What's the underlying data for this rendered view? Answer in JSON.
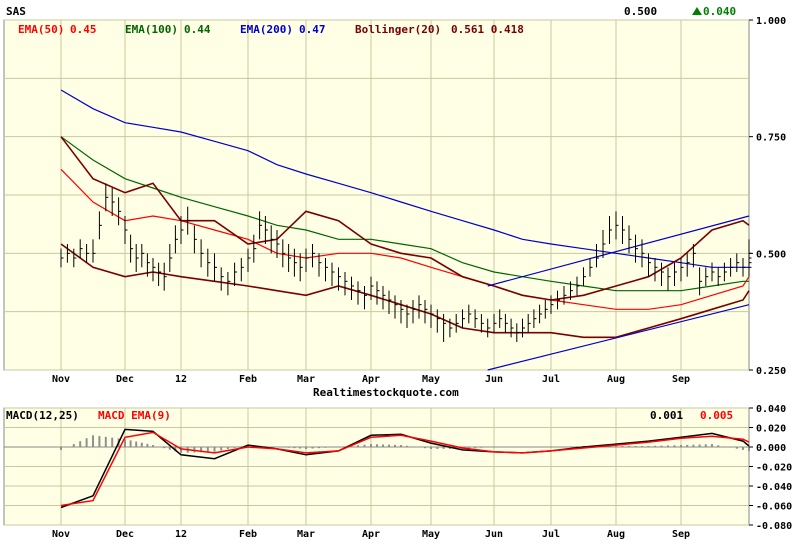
{
  "header": {
    "symbol": "SAS",
    "last_price": "0.500",
    "change": "0.040",
    "change_arrow": "up-arrow-icon",
    "change_color": "#008000"
  },
  "watermark": "Realtimestockquote.com",
  "legend": [
    {
      "label": "EMA(50)",
      "value": "0.45",
      "color": "#ff0000"
    },
    {
      "label": "EMA(100)",
      "value": "0.44",
      "color": "#006600"
    },
    {
      "label": "EMA(200)",
      "value": "0.47",
      "color": "#0000cc"
    },
    {
      "label": "Bollinger(20)",
      "value": "0.561 0.418",
      "color": "#7a0000"
    }
  ],
  "macd_legend": [
    {
      "label": "MACD(12,25)",
      "color": "#000000"
    },
    {
      "label": "MACD EMA(9)",
      "color": "#ff0000"
    }
  ],
  "macd_values": {
    "macd": "0.001",
    "signal": "0.005"
  },
  "colors": {
    "background": "#ffffe6",
    "grid": "#c8c8a0",
    "price_bar": "#000000",
    "histogram": "#909090"
  },
  "chart_data": [
    {
      "type": "line",
      "title": "SAS",
      "x_labels": [
        "Nov",
        "Dec",
        "12",
        "Feb",
        "Mar",
        "Apr",
        "May",
        "Jun",
        "Jul",
        "Aug",
        "Sep"
      ],
      "y_ticks": [
        "1.000",
        "0.750",
        "0.500",
        "0.250"
      ],
      "ylim": [
        0.25,
        1.0
      ],
      "grid": true,
      "price_bars": {
        "month_index": [
          0.0,
          0.1,
          0.2,
          0.3,
          0.4,
          0.5,
          0.6,
          0.7,
          0.8,
          0.9,
          1.0,
          1.1,
          1.2,
          1.3,
          1.4,
          1.5,
          1.6,
          1.7,
          1.8,
          1.9,
          2.0,
          2.1,
          2.2,
          2.3,
          2.4,
          2.5,
          2.6,
          2.7,
          2.8,
          2.9,
          3.0,
          3.1,
          3.2,
          3.3,
          3.4,
          3.5,
          3.6,
          3.7,
          3.8,
          3.9,
          4.0,
          4.1,
          4.2,
          4.3,
          4.4,
          4.5,
          4.6,
          4.7,
          4.8,
          4.9,
          5.0,
          5.1,
          5.2,
          5.3,
          5.4,
          5.5,
          5.6,
          5.7,
          5.8,
          5.9,
          6.0,
          6.1,
          6.2,
          6.3,
          6.4,
          6.5,
          6.6,
          6.7,
          6.8,
          6.9,
          7.0,
          7.1,
          7.2,
          7.3,
          7.4,
          7.5,
          7.6,
          7.7,
          7.8,
          7.9,
          8.0,
          8.1,
          8.2,
          8.3,
          8.4,
          8.5,
          8.6,
          8.7,
          8.8,
          8.9,
          9.0,
          9.1,
          9.2,
          9.3,
          9.4,
          9.5,
          9.6,
          9.7,
          9.8,
          9.9,
          10.0,
          10.1,
          10.2,
          10.3,
          10.4,
          10.5,
          10.6,
          10.7,
          10.8,
          10.9,
          11.0,
          11.1,
          11.2,
          11.3,
          11.4,
          11.5
        ],
        "close": [
          0.49,
          0.5,
          0.49,
          0.51,
          0.5,
          0.5,
          0.56,
          0.62,
          0.61,
          0.59,
          0.55,
          0.51,
          0.49,
          0.5,
          0.48,
          0.47,
          0.46,
          0.45,
          0.49,
          0.53,
          0.55,
          0.57,
          0.53,
          0.5,
          0.48,
          0.47,
          0.45,
          0.44,
          0.46,
          0.47,
          0.49,
          0.51,
          0.56,
          0.55,
          0.53,
          0.52,
          0.5,
          0.49,
          0.48,
          0.47,
          0.49,
          0.5,
          0.48,
          0.47,
          0.46,
          0.45,
          0.44,
          0.43,
          0.42,
          0.41,
          0.43,
          0.42,
          0.41,
          0.4,
          0.39,
          0.38,
          0.37,
          0.38,
          0.39,
          0.38,
          0.37,
          0.36,
          0.35,
          0.34,
          0.35,
          0.36,
          0.37,
          0.36,
          0.35,
          0.34,
          0.35,
          0.36,
          0.35,
          0.34,
          0.33,
          0.34,
          0.35,
          0.36,
          0.37,
          0.38,
          0.39,
          0.4,
          0.41,
          0.42,
          0.43,
          0.45,
          0.47,
          0.49,
          0.52,
          0.55,
          0.56,
          0.55,
          0.53,
          0.51,
          0.5,
          0.48,
          0.47,
          0.46,
          0.45,
          0.46,
          0.47,
          0.48,
          0.5,
          0.44,
          0.45,
          0.46,
          0.45,
          0.46,
          0.47,
          0.48,
          0.47,
          0.47,
          0.48,
          0.49,
          0.49,
          0.5
        ],
        "high": [
          0.51,
          0.52,
          0.51,
          0.53,
          0.52,
          0.53,
          0.59,
          0.65,
          0.64,
          0.62,
          0.58,
          0.54,
          0.52,
          0.52,
          0.5,
          0.49,
          0.48,
          0.48,
          0.52,
          0.56,
          0.58,
          0.6,
          0.56,
          0.53,
          0.51,
          0.5,
          0.47,
          0.46,
          0.48,
          0.49,
          0.51,
          0.54,
          0.59,
          0.58,
          0.56,
          0.55,
          0.53,
          0.52,
          0.51,
          0.5,
          0.51,
          0.52,
          0.5,
          0.49,
          0.48,
          0.47,
          0.46,
          0.45,
          0.44,
          0.43,
          0.45,
          0.44,
          0.43,
          0.42,
          0.41,
          0.4,
          0.39,
          0.4,
          0.41,
          0.4,
          0.39,
          0.38,
          0.37,
          0.36,
          0.37,
          0.38,
          0.39,
          0.38,
          0.37,
          0.36,
          0.37,
          0.38,
          0.37,
          0.36,
          0.35,
          0.36,
          0.37,
          0.38,
          0.39,
          0.4,
          0.41,
          0.42,
          0.43,
          0.44,
          0.45,
          0.47,
          0.49,
          0.52,
          0.55,
          0.58,
          0.59,
          0.58,
          0.56,
          0.54,
          0.53,
          0.5,
          0.49,
          0.48,
          0.47,
          0.48,
          0.49,
          0.5,
          0.52,
          0.47,
          0.47,
          0.48,
          0.47,
          0.48,
          0.49,
          0.5,
          0.49,
          0.49,
          0.5,
          0.51,
          0.51,
          0.53
        ],
        "low": [
          0.47,
          0.48,
          0.47,
          0.49,
          0.48,
          0.48,
          0.53,
          0.59,
          0.58,
          0.56,
          0.52,
          0.48,
          0.46,
          0.47,
          0.45,
          0.44,
          0.43,
          0.42,
          0.46,
          0.5,
          0.52,
          0.54,
          0.5,
          0.47,
          0.45,
          0.44,
          0.42,
          0.41,
          0.43,
          0.44,
          0.46,
          0.48,
          0.53,
          0.52,
          0.5,
          0.49,
          0.47,
          0.46,
          0.45,
          0.44,
          0.46,
          0.47,
          0.45,
          0.44,
          0.43,
          0.42,
          0.41,
          0.4,
          0.39,
          0.38,
          0.4,
          0.39,
          0.38,
          0.37,
          0.36,
          0.35,
          0.34,
          0.35,
          0.36,
          0.35,
          0.34,
          0.33,
          0.31,
          0.32,
          0.33,
          0.34,
          0.35,
          0.34,
          0.33,
          0.32,
          0.33,
          0.34,
          0.33,
          0.32,
          0.31,
          0.32,
          0.33,
          0.34,
          0.35,
          0.36,
          0.37,
          0.38,
          0.39,
          0.4,
          0.41,
          0.43,
          0.45,
          0.47,
          0.49,
          0.52,
          0.53,
          0.52,
          0.5,
          0.48,
          0.47,
          0.45,
          0.44,
          0.43,
          0.42,
          0.43,
          0.44,
          0.45,
          0.47,
          0.41,
          0.43,
          0.44,
          0.43,
          0.44,
          0.45,
          0.46,
          0.45,
          0.45,
          0.46,
          0.47,
          0.47,
          0.47
        ]
      },
      "series": [
        {
          "name": "EMA(50)",
          "color": "#ff0000",
          "x": [
            0,
            0.5,
            1,
            1.5,
            2,
            2.5,
            3,
            3.5,
            4,
            4.5,
            5,
            5.5,
            6,
            6.5,
            7,
            7.5,
            8,
            8.5,
            9,
            9.5,
            10,
            10.5,
            11,
            11.5
          ],
          "values": [
            0.68,
            0.61,
            0.57,
            0.58,
            0.57,
            0.55,
            0.53,
            0.5,
            0.49,
            0.5,
            0.5,
            0.49,
            0.47,
            0.45,
            0.43,
            0.41,
            0.4,
            0.39,
            0.38,
            0.38,
            0.39,
            0.41,
            0.43,
            0.45
          ]
        },
        {
          "name": "EMA(100)",
          "color": "#006600",
          "x": [
            0,
            0.5,
            1,
            1.5,
            2,
            2.5,
            3,
            3.5,
            4,
            4.5,
            5,
            5.5,
            6,
            6.5,
            7,
            7.5,
            8,
            8.5,
            9,
            9.5,
            10,
            10.5,
            11,
            11.5
          ],
          "values": [
            0.75,
            0.7,
            0.66,
            0.64,
            0.62,
            0.6,
            0.58,
            0.56,
            0.55,
            0.53,
            0.53,
            0.52,
            0.51,
            0.48,
            0.46,
            0.45,
            0.44,
            0.43,
            0.42,
            0.42,
            0.42,
            0.43,
            0.44,
            0.44
          ]
        },
        {
          "name": "EMA(200)",
          "color": "#0000cc",
          "x": [
            0,
            0.5,
            1,
            1.5,
            2,
            2.5,
            3,
            3.5,
            4,
            4.5,
            5,
            5.5,
            6,
            6.5,
            7,
            7.5,
            8,
            8.5,
            9,
            9.5,
            10,
            10.5,
            11,
            11.5
          ],
          "values": [
            0.85,
            0.81,
            0.78,
            0.77,
            0.76,
            0.74,
            0.72,
            0.69,
            0.67,
            0.65,
            0.63,
            0.61,
            0.59,
            0.57,
            0.55,
            0.53,
            0.52,
            0.51,
            0.5,
            0.49,
            0.48,
            0.47,
            0.47,
            0.47
          ]
        },
        {
          "name": "Bollinger(20) upper",
          "color": "#7a0000",
          "x": [
            0,
            0.5,
            1,
            1.5,
            2,
            2.5,
            3,
            3.5,
            4,
            4.5,
            5,
            5.5,
            6,
            6.5,
            7,
            7.5,
            8,
            8.5,
            9,
            9.5,
            10,
            10.5,
            11,
            11.5
          ],
          "values": [
            0.75,
            0.66,
            0.63,
            0.65,
            0.57,
            0.57,
            0.52,
            0.53,
            0.59,
            0.57,
            0.52,
            0.5,
            0.49,
            0.45,
            0.43,
            0.41,
            0.4,
            0.41,
            0.43,
            0.45,
            0.49,
            0.55,
            0.57,
            0.56
          ]
        },
        {
          "name": "Bollinger(20) lower",
          "color": "#7a0000",
          "x": [
            0,
            0.5,
            1,
            1.5,
            2,
            2.5,
            3,
            3.5,
            4,
            4.5,
            5,
            5.5,
            6,
            6.5,
            7,
            7.5,
            8,
            8.5,
            9,
            9.5,
            10,
            10.5,
            11,
            11.5
          ],
          "values": [
            0.52,
            0.47,
            0.45,
            0.46,
            0.45,
            0.44,
            0.43,
            0.42,
            0.41,
            0.43,
            0.41,
            0.39,
            0.37,
            0.34,
            0.33,
            0.33,
            0.33,
            0.32,
            0.32,
            0.34,
            0.36,
            0.38,
            0.4,
            0.42
          ]
        },
        {
          "name": "Trendline upper",
          "color": "#0000cc",
          "x": [
            6.9,
            11.5
          ],
          "values": [
            0.43,
            0.58
          ]
        },
        {
          "name": "Trendline lower",
          "color": "#0000cc",
          "x": [
            6.9,
            11.5
          ],
          "values": [
            0.25,
            0.39
          ]
        }
      ]
    },
    {
      "type": "line",
      "title": "MACD(12,25)",
      "x_labels": [
        "Nov",
        "Dec",
        "12",
        "Feb",
        "Mar",
        "Apr",
        "May",
        "Jun",
        "Jul",
        "Aug",
        "Sep"
      ],
      "y_ticks": [
        "0.040",
        "0.020",
        "0.000",
        "-0.020",
        "-0.040",
        "-0.060",
        "-0.080"
      ],
      "ylim": [
        -0.08,
        0.04
      ],
      "grid": true,
      "series": [
        {
          "name": "MACD(12,25)",
          "color": "#000000",
          "x": [
            0,
            0.5,
            1,
            1.5,
            2,
            2.5,
            3,
            3.5,
            4,
            4.5,
            5,
            5.5,
            6,
            6.5,
            7,
            7.5,
            8,
            8.5,
            9,
            9.5,
            10,
            10.5,
            11,
            11.5
          ],
          "values": [
            -0.062,
            -0.05,
            0.018,
            0.016,
            -0.008,
            -0.012,
            0.002,
            -0.002,
            -0.008,
            -0.004,
            0.012,
            0.013,
            0.004,
            -0.003,
            -0.005,
            -0.006,
            -0.004,
            0.0,
            0.003,
            0.006,
            0.01,
            0.014,
            0.006,
            0.001
          ]
        },
        {
          "name": "MACD EMA(9)",
          "color": "#ff0000",
          "x": [
            0,
            0.5,
            1,
            1.5,
            2,
            2.5,
            3,
            3.5,
            4,
            4.5,
            5,
            5.5,
            6,
            6.5,
            7,
            7.5,
            8,
            8.5,
            9,
            9.5,
            10,
            10.5,
            11,
            11.5
          ],
          "values": [
            -0.06,
            -0.055,
            0.01,
            0.015,
            -0.002,
            -0.006,
            0.0,
            -0.002,
            -0.006,
            -0.004,
            0.01,
            0.012,
            0.006,
            -0.001,
            -0.005,
            -0.006,
            -0.004,
            -0.001,
            0.002,
            0.005,
            0.009,
            0.011,
            0.008,
            0.005
          ]
        },
        {
          "name": "Histogram",
          "color": "#909090",
          "x": [
            0,
            0.5,
            1,
            1.5,
            2,
            2.5,
            3,
            3.5,
            4,
            4.5,
            5,
            5.5,
            6,
            6.5,
            7,
            7.5,
            8,
            8.5,
            9,
            9.5,
            10,
            10.5,
            11,
            11.5
          ],
          "values": [
            -0.003,
            0.012,
            0.008,
            0.002,
            -0.006,
            -0.005,
            0.002,
            0.0,
            -0.002,
            0.0,
            0.003,
            0.002,
            -0.002,
            -0.002,
            0.0,
            0.0,
            0.0,
            0.001,
            0.001,
            0.001,
            0.002,
            0.003,
            -0.003,
            -0.004
          ]
        }
      ]
    }
  ]
}
